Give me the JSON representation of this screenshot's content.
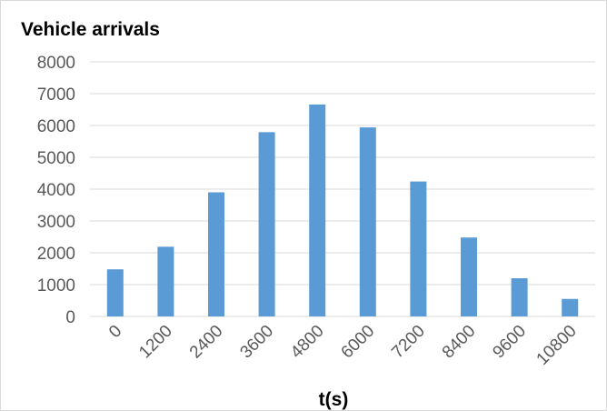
{
  "chart_data": {
    "type": "bar",
    "ylabel": "Vehicle arrivals",
    "xlabel": "t(s)",
    "categories": [
      "0",
      "1200",
      "2400",
      "3600",
      "4800",
      "6000",
      "7200",
      "8400",
      "9600",
      "10800"
    ],
    "values": [
      1480,
      2190,
      3900,
      5790,
      6660,
      5940,
      4240,
      2480,
      1200,
      550
    ],
    "ylim": [
      0,
      8000
    ],
    "yticks": [
      "0",
      "1000",
      "2000",
      "3000",
      "4000",
      "5000",
      "6000",
      "7000",
      "8000"
    ],
    "grid": true,
    "legend": "none",
    "colors": {
      "bar": "#5b9bd5",
      "grid": "#d9d9d9",
      "tick_text": "#595959"
    }
  }
}
